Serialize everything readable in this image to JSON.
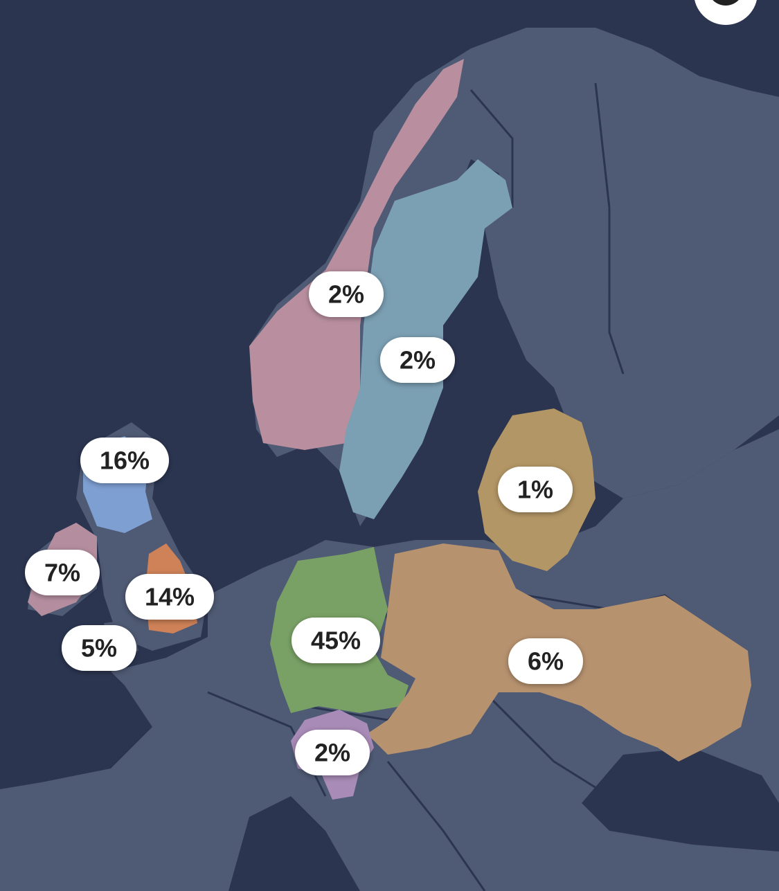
{
  "regions": [
    {
      "label": "2%",
      "color": "#b98f9f"
    },
    {
      "label": "2%",
      "color": "#7b9fb3"
    },
    {
      "label": "16%",
      "color": "#7e9fd2"
    },
    {
      "label": "7%",
      "color": "#b48e9e"
    },
    {
      "label": "14%",
      "color": "#cf8257"
    },
    {
      "label": "5%",
      "color": "#4f5a74"
    },
    {
      "label": "45%",
      "color": "#79a165"
    },
    {
      "label": "1%",
      "color": "#b39665"
    },
    {
      "label": "6%",
      "color": "#b7926f"
    },
    {
      "label": "2%",
      "color": "#a88bb7"
    }
  ]
}
